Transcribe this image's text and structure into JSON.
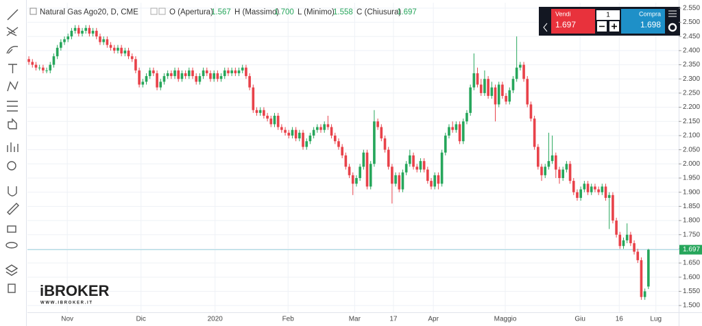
{
  "header": {
    "symbol": "Natural Gas Ago20, D, CME",
    "open_label": "O (Apertura)",
    "open": "1.567",
    "high_label": "H (Massimo)",
    "high": "1.700",
    "low_label": "L (Minimo)",
    "low": "1.558",
    "close_label": "C (Chiusura)",
    "close": "1.697"
  },
  "order_panel": {
    "sell_label": "Vendi",
    "sell_price": "1.697",
    "quantity": "1",
    "buy_label": "Compra",
    "buy_price": "1.698"
  },
  "logo": {
    "name": "iBROKER",
    "url": "W W W . I B R O K E R . I T"
  },
  "price_label": "1.697",
  "chart_data": {
    "type": "candlestick",
    "up_color": "#26a65b",
    "down_color": "#e8424a",
    "grid": true,
    "xlim": [
      -0.4,
      182.5
    ],
    "ylim": [
      1.476,
      2.569
    ],
    "xticks": [
      {
        "value": 10.8,
        "label": "Nov"
      },
      {
        "value": 31.5,
        "label": "Dic"
      },
      {
        "value": 52.3,
        "label": "2020"
      },
      {
        "value": 72.8,
        "label": "Feb"
      },
      {
        "value": 91.5,
        "label": "Mar"
      },
      {
        "value": 102.4,
        "label": "17"
      },
      {
        "value": 113.6,
        "label": "Apr"
      },
      {
        "value": 133.8,
        "label": "Maggio"
      },
      {
        "value": 154.8,
        "label": "Giu"
      },
      {
        "value": 165.8,
        "label": "16"
      },
      {
        "value": 176.1,
        "label": "Lug"
      }
    ],
    "yticks": [
      {
        "value": 1.5,
        "label": "1.500"
      },
      {
        "value": 1.55,
        "label": "1.550"
      },
      {
        "value": 1.6,
        "label": "1.600"
      },
      {
        "value": 1.65,
        "label": "1.650"
      },
      {
        "value": 1.7,
        "label": "1.700"
      },
      {
        "value": 1.75,
        "label": "1.750"
      },
      {
        "value": 1.8,
        "label": "1.800"
      },
      {
        "value": 1.85,
        "label": "1.850"
      },
      {
        "value": 1.9,
        "label": "1.900"
      },
      {
        "value": 1.95,
        "label": "1.950"
      },
      {
        "value": 2.0,
        "label": "2.000"
      },
      {
        "value": 2.05,
        "label": "2.050"
      },
      {
        "value": 2.1,
        "label": "2.100"
      },
      {
        "value": 2.15,
        "label": "2.150"
      },
      {
        "value": 2.2,
        "label": "2.200"
      },
      {
        "value": 2.25,
        "label": "2.250"
      },
      {
        "value": 2.3,
        "label": "2.300"
      },
      {
        "value": 2.35,
        "label": "2.350"
      },
      {
        "value": 2.4,
        "label": "2.400"
      },
      {
        "value": 2.45,
        "label": "2.450"
      },
      {
        "value": 2.5,
        "label": "2.500"
      },
      {
        "value": 2.55,
        "label": "2.550"
      }
    ],
    "ohlc": [
      [
        2.37,
        2.38,
        2.35,
        2.36
      ],
      [
        2.36,
        2.37,
        2.34,
        2.35
      ],
      [
        2.35,
        2.36,
        2.33,
        2.34
      ],
      [
        2.34,
        2.35,
        2.33,
        2.34
      ],
      [
        2.34,
        2.35,
        2.32,
        2.33
      ],
      [
        2.33,
        2.34,
        2.32,
        2.33
      ],
      [
        2.33,
        2.36,
        2.32,
        2.35
      ],
      [
        2.35,
        2.39,
        2.34,
        2.38
      ],
      [
        2.38,
        2.42,
        2.37,
        2.41
      ],
      [
        2.41,
        2.44,
        2.4,
        2.43
      ],
      [
        2.43,
        2.45,
        2.42,
        2.44
      ],
      [
        2.44,
        2.46,
        2.43,
        2.45
      ],
      [
        2.45,
        2.48,
        2.44,
        2.47
      ],
      [
        2.47,
        2.49,
        2.46,
        2.48
      ],
      [
        2.48,
        2.49,
        2.45,
        2.46
      ],
      [
        2.46,
        2.48,
        2.45,
        2.47
      ],
      [
        2.47,
        2.49,
        2.46,
        2.48
      ],
      [
        2.48,
        2.49,
        2.45,
        2.46
      ],
      [
        2.46,
        2.48,
        2.45,
        2.47
      ],
      [
        2.47,
        2.48,
        2.44,
        2.45
      ],
      [
        2.45,
        2.46,
        2.42,
        2.43
      ],
      [
        2.43,
        2.45,
        2.42,
        2.44
      ],
      [
        2.44,
        2.45,
        2.41,
        2.42
      ],
      [
        2.42,
        2.43,
        2.4,
        2.41
      ],
      [
        2.41,
        2.42,
        2.39,
        2.4
      ],
      [
        2.4,
        2.42,
        2.39,
        2.41
      ],
      [
        2.41,
        2.42,
        2.38,
        2.39
      ],
      [
        2.39,
        2.41,
        2.38,
        2.4
      ],
      [
        2.4,
        2.41,
        2.37,
        2.38
      ],
      [
        2.38,
        2.39,
        2.36,
        2.37
      ],
      [
        2.37,
        2.38,
        2.32,
        2.33
      ],
      [
        2.33,
        2.34,
        2.27,
        2.28
      ],
      [
        2.28,
        2.3,
        2.27,
        2.29
      ],
      [
        2.29,
        2.32,
        2.28,
        2.31
      ],
      [
        2.31,
        2.34,
        2.3,
        2.33
      ],
      [
        2.33,
        2.34,
        2.31,
        2.32
      ],
      [
        2.32,
        2.33,
        2.26,
        2.27
      ],
      [
        2.27,
        2.3,
        2.26,
        2.29
      ],
      [
        2.29,
        2.32,
        2.28,
        2.31
      ],
      [
        2.31,
        2.33,
        2.3,
        2.32
      ],
      [
        2.32,
        2.33,
        2.3,
        2.31
      ],
      [
        2.31,
        2.34,
        2.3,
        2.33
      ],
      [
        2.33,
        2.34,
        2.29,
        2.3
      ],
      [
        2.3,
        2.33,
        2.29,
        2.32
      ],
      [
        2.32,
        2.33,
        2.3,
        2.31
      ],
      [
        2.31,
        2.34,
        2.3,
        2.33
      ],
      [
        2.33,
        2.34,
        2.3,
        2.31
      ],
      [
        2.31,
        2.32,
        2.28,
        2.29
      ],
      [
        2.29,
        2.32,
        2.28,
        2.31
      ],
      [
        2.31,
        2.34,
        2.3,
        2.33
      ],
      [
        2.33,
        2.34,
        2.31,
        2.32
      ],
      [
        2.32,
        2.33,
        2.29,
        2.3
      ],
      [
        2.3,
        2.33,
        2.29,
        2.32
      ],
      [
        2.32,
        2.33,
        2.29,
        2.3
      ],
      [
        2.3,
        2.32,
        2.29,
        2.31
      ],
      [
        2.31,
        2.34,
        2.3,
        2.33
      ],
      [
        2.33,
        2.34,
        2.31,
        2.32
      ],
      [
        2.32,
        2.34,
        2.31,
        2.33
      ],
      [
        2.33,
        2.34,
        2.31,
        2.32
      ],
      [
        2.32,
        2.34,
        2.31,
        2.33
      ],
      [
        2.33,
        2.35,
        2.32,
        2.34
      ],
      [
        2.34,
        2.35,
        2.3,
        2.31
      ],
      [
        2.31,
        2.32,
        2.26,
        2.27
      ],
      [
        2.27,
        2.28,
        2.18,
        2.19
      ],
      [
        2.19,
        2.2,
        2.17,
        2.18
      ],
      [
        2.18,
        2.2,
        2.17,
        2.19
      ],
      [
        2.19,
        2.2,
        2.16,
        2.17
      ],
      [
        2.17,
        2.18,
        2.15,
        2.16
      ],
      [
        2.16,
        2.17,
        2.13,
        2.14
      ],
      [
        2.14,
        2.18,
        2.13,
        2.17
      ],
      [
        2.17,
        2.18,
        2.12,
        2.13
      ],
      [
        2.13,
        2.14,
        2.11,
        2.12
      ],
      [
        2.12,
        2.13,
        2.1,
        2.11
      ],
      [
        2.11,
        2.12,
        2.09,
        2.1
      ],
      [
        2.1,
        2.13,
        2.09,
        2.12
      ],
      [
        2.12,
        2.13,
        2.08,
        2.09
      ],
      [
        2.09,
        2.12,
        2.08,
        2.11
      ],
      [
        2.11,
        2.12,
        2.05,
        2.06
      ],
      [
        2.06,
        2.09,
        2.05,
        2.08
      ],
      [
        2.08,
        2.11,
        2.07,
        2.1
      ],
      [
        2.1,
        2.13,
        2.09,
        2.12
      ],
      [
        2.12,
        2.14,
        2.11,
        2.13
      ],
      [
        2.13,
        2.14,
        2.11,
        2.12
      ],
      [
        2.12,
        2.15,
        2.11,
        2.14
      ],
      [
        2.14,
        2.17,
        2.12,
        2.13
      ],
      [
        2.13,
        2.14,
        2.09,
        2.1
      ],
      [
        2.1,
        2.11,
        2.07,
        2.08
      ],
      [
        2.08,
        2.09,
        2.05,
        2.06
      ],
      [
        2.06,
        2.07,
        2.02,
        2.03
      ],
      [
        2.03,
        2.04,
        1.98,
        1.99
      ],
      [
        1.99,
        2.0,
        1.95,
        1.96
      ],
      [
        1.96,
        1.97,
        1.89,
        1.93
      ],
      [
        1.93,
        1.96,
        1.92,
        1.95
      ],
      [
        1.95,
        2.0,
        1.94,
        1.99
      ],
      [
        1.99,
        2.05,
        1.98,
        2.04
      ],
      [
        2.04,
        2.05,
        1.91,
        1.92
      ],
      [
        1.92,
        2.01,
        1.91,
        2.0
      ],
      [
        2.0,
        2.19,
        1.99,
        2.15
      ],
      [
        2.15,
        2.16,
        2.12,
        2.13
      ],
      [
        2.13,
        2.14,
        2.08,
        2.09
      ],
      [
        2.09,
        2.1,
        2.04,
        2.05
      ],
      [
        2.05,
        2.06,
        1.98,
        1.99
      ],
      [
        1.99,
        2.0,
        1.86,
        1.93
      ],
      [
        1.93,
        1.97,
        1.92,
        1.96
      ],
      [
        1.96,
        1.97,
        1.9,
        1.91
      ],
      [
        1.91,
        1.98,
        1.9,
        1.97
      ],
      [
        1.97,
        2.01,
        1.96,
        2.0
      ],
      [
        2.0,
        2.05,
        1.99,
        2.03
      ],
      [
        2.03,
        2.04,
        1.98,
        1.99
      ],
      [
        1.99,
        2.0,
        1.97,
        1.98
      ],
      [
        1.98,
        2.02,
        1.97,
        2.01
      ],
      [
        2.01,
        2.02,
        1.97,
        1.98
      ],
      [
        1.98,
        1.99,
        1.93,
        1.94
      ],
      [
        1.94,
        1.95,
        1.91,
        1.92
      ],
      [
        1.92,
        1.97,
        1.91,
        1.96
      ],
      [
        1.96,
        1.97,
        1.91,
        1.93
      ],
      [
        1.93,
        2.05,
        1.92,
        2.04
      ],
      [
        2.04,
        2.11,
        2.03,
        2.1
      ],
      [
        2.1,
        2.14,
        2.09,
        2.13
      ],
      [
        2.13,
        2.15,
        2.11,
        2.12
      ],
      [
        2.12,
        2.15,
        2.11,
        2.14
      ],
      [
        2.14,
        2.15,
        2.07,
        2.08
      ],
      [
        2.08,
        2.16,
        2.07,
        2.15
      ],
      [
        2.15,
        2.19,
        2.14,
        2.18
      ],
      [
        2.18,
        2.28,
        2.17,
        2.27
      ],
      [
        2.27,
        2.39,
        2.26,
        2.32
      ],
      [
        2.32,
        2.34,
        2.27,
        2.28
      ],
      [
        2.28,
        2.3,
        2.24,
        2.25
      ],
      [
        2.25,
        2.33,
        2.24,
        2.3
      ],
      [
        2.3,
        2.31,
        2.23,
        2.24
      ],
      [
        2.24,
        2.29,
        2.23,
        2.27
      ],
      [
        2.27,
        2.28,
        2.15,
        2.21
      ],
      [
        2.21,
        2.29,
        2.2,
        2.28
      ],
      [
        2.28,
        2.29,
        2.23,
        2.24
      ],
      [
        2.24,
        2.25,
        2.21,
        2.22
      ],
      [
        2.22,
        2.27,
        2.21,
        2.26
      ],
      [
        2.26,
        2.31,
        2.25,
        2.3
      ],
      [
        2.3,
        2.45,
        2.29,
        2.34
      ],
      [
        2.34,
        2.36,
        2.33,
        2.35
      ],
      [
        2.35,
        2.36,
        2.29,
        2.3
      ],
      [
        2.3,
        2.31,
        2.2,
        2.21
      ],
      [
        2.21,
        2.22,
        2.15,
        2.16
      ],
      [
        2.16,
        2.17,
        2.05,
        2.06
      ],
      [
        2.06,
        2.07,
        1.98,
        1.99
      ],
      [
        1.99,
        2.0,
        1.94,
        1.96
      ],
      [
        1.96,
        2.0,
        1.95,
        1.99
      ],
      [
        1.99,
        2.11,
        1.98,
        2.01
      ],
      [
        2.01,
        2.1,
        2.0,
        2.03
      ],
      [
        2.03,
        2.04,
        1.95,
        1.98
      ],
      [
        1.98,
        1.99,
        1.93,
        1.95
      ],
      [
        1.95,
        1.99,
        1.94,
        1.98
      ],
      [
        1.98,
        2.01,
        1.97,
        2.0
      ],
      [
        2.0,
        2.01,
        1.93,
        1.94
      ],
      [
        1.94,
        1.95,
        1.89,
        1.9
      ],
      [
        1.9,
        1.91,
        1.87,
        1.88
      ],
      [
        1.88,
        1.92,
        1.87,
        1.91
      ],
      [
        1.91,
        1.94,
        1.9,
        1.93
      ],
      [
        1.93,
        1.94,
        1.89,
        1.9
      ],
      [
        1.9,
        1.93,
        1.89,
        1.92
      ],
      [
        1.92,
        1.93,
        1.9,
        1.91
      ],
      [
        1.91,
        1.92,
        1.89,
        1.9
      ],
      [
        1.9,
        1.93,
        1.89,
        1.92
      ],
      [
        1.92,
        1.93,
        1.87,
        1.88
      ],
      [
        1.88,
        1.9,
        1.77,
        1.89
      ],
      [
        1.89,
        1.9,
        1.79,
        1.8
      ],
      [
        1.8,
        1.81,
        1.74,
        1.75
      ],
      [
        1.75,
        1.76,
        1.7,
        1.71
      ],
      [
        1.71,
        1.74,
        1.7,
        1.73
      ],
      [
        1.73,
        1.79,
        1.72,
        1.75
      ],
      [
        1.75,
        1.76,
        1.71,
        1.72
      ],
      [
        1.72,
        1.73,
        1.68,
        1.69
      ],
      [
        1.69,
        1.7,
        1.65,
        1.66
      ],
      [
        1.66,
        1.67,
        1.52,
        1.53
      ],
      [
        1.53,
        1.56,
        1.52,
        1.55
      ],
      [
        1.567,
        1.7,
        1.558,
        1.697
      ]
    ]
  }
}
